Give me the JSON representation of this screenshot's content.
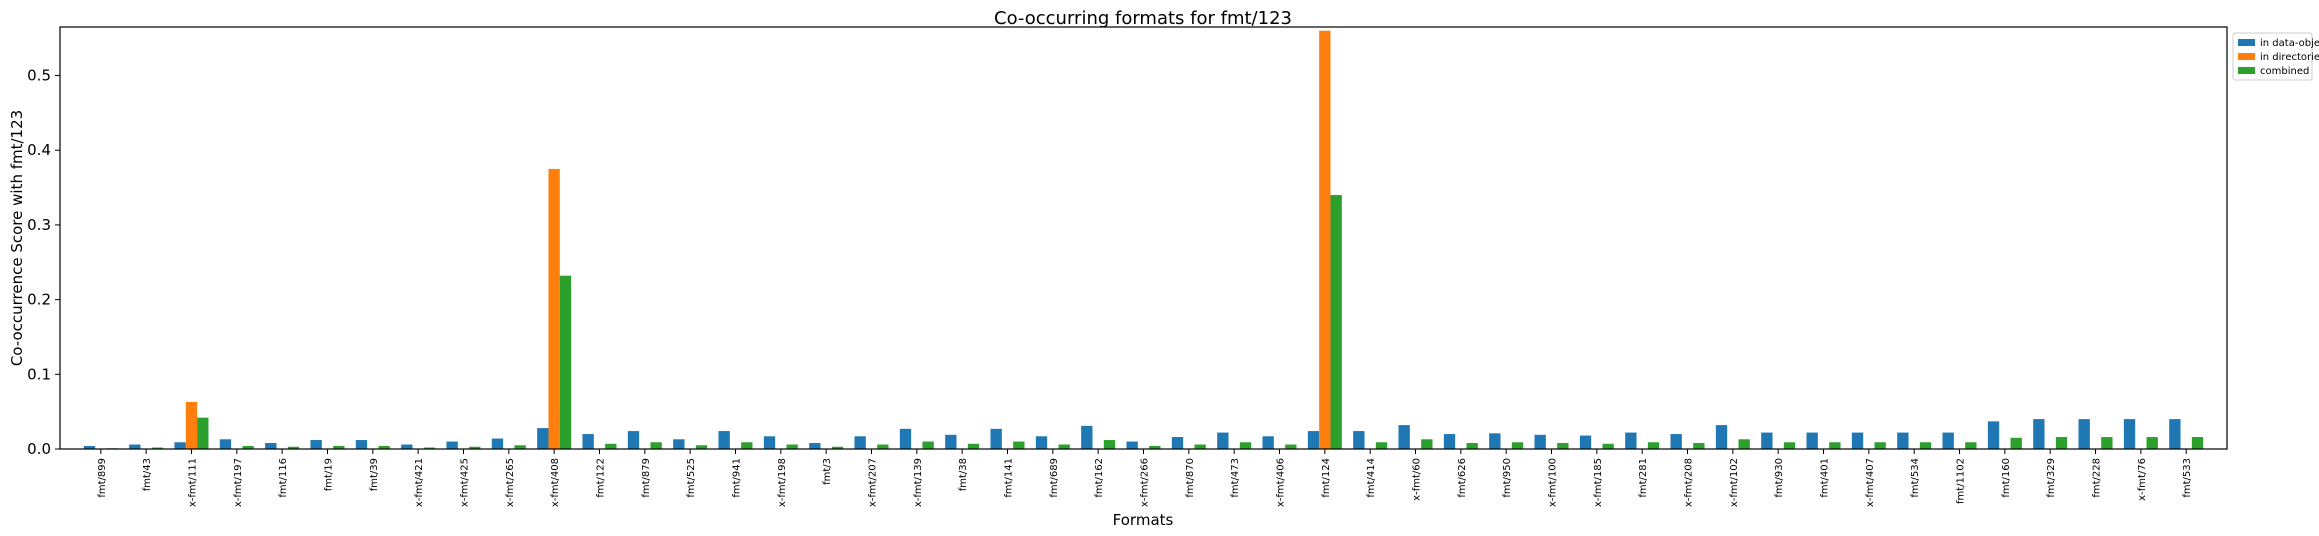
{
  "chart_data": {
    "type": "bar",
    "title": "Co-occurring formats for fmt/123",
    "xlabel": "Formats",
    "ylabel": "Co-occurrence Score with fmt/123",
    "ylim": [
      0,
      0.565
    ],
    "yticks": [
      0.0,
      0.1,
      0.2,
      0.3,
      0.4,
      0.5
    ],
    "ytick_labels": [
      "0.0",
      "0.1",
      "0.2",
      "0.3",
      "0.4",
      "0.5"
    ],
    "grid": false,
    "legend_position": "outside top-right",
    "categories": [
      "fmt/899",
      "fmt/43",
      "x-fmt/111",
      "x-fmt/197",
      "fmt/116",
      "fmt/19",
      "fmt/39",
      "x-fmt/421",
      "x-fmt/425",
      "x-fmt/265",
      "x-fmt/408",
      "fmt/122",
      "fmt/879",
      "fmt/525",
      "fmt/941",
      "x-fmt/198",
      "fmt/3",
      "x-fmt/207",
      "x-fmt/139",
      "fmt/38",
      "fmt/141",
      "fmt/689",
      "fmt/162",
      "x-fmt/266",
      "fmt/870",
      "fmt/473",
      "x-fmt/406",
      "fmt/124",
      "fmt/414",
      "x-fmt/60",
      "fmt/626",
      "fmt/950",
      "x-fmt/100",
      "x-fmt/185",
      "fmt/281",
      "x-fmt/208",
      "x-fmt/102",
      "fmt/930",
      "fmt/401",
      "x-fmt/407",
      "fmt/534",
      "fmt/1102",
      "fmt/160",
      "fmt/329",
      "fmt/228",
      "x-fmt/76",
      "fmt/533"
    ],
    "series": [
      {
        "name": "in data-objects",
        "color": "#1f77b4",
        "values": [
          0.004,
          0.006,
          0.009,
          0.013,
          0.008,
          0.012,
          0.012,
          0.006,
          0.01,
          0.014,
          0.028,
          0.02,
          0.024,
          0.013,
          0.024,
          0.017,
          0.008,
          0.017,
          0.027,
          0.019,
          0.027,
          0.017,
          0.031,
          0.01,
          0.016,
          0.022,
          0.017,
          0.024,
          0.024,
          0.032,
          0.02,
          0.021,
          0.019,
          0.018,
          0.022,
          0.02,
          0.032,
          0.022,
          0.022,
          0.022,
          0.022,
          0.022,
          0.037,
          0.04,
          0.04,
          0.04,
          0.04
        ]
      },
      {
        "name": "in directories",
        "color": "#ff7f0e",
        "values": [
          0,
          0,
          0.063,
          0,
          0,
          0,
          0,
          0,
          0,
          0,
          0.375,
          0,
          0,
          0,
          0,
          0,
          0,
          0,
          0,
          0,
          0,
          0,
          0,
          0,
          0,
          0,
          0,
          0.56,
          0,
          0,
          0,
          0,
          0,
          0,
          0,
          0,
          0,
          0,
          0,
          0,
          0,
          0,
          0,
          0,
          0,
          0,
          0
        ]
      },
      {
        "name": "combined",
        "color": "#2ca02c",
        "values": [
          0.001,
          0.002,
          0.042,
          0.004,
          0.003,
          0.004,
          0.004,
          0.002,
          0.003,
          0.005,
          0.232,
          0.007,
          0.009,
          0.005,
          0.009,
          0.006,
          0.003,
          0.006,
          0.01,
          0.007,
          0.01,
          0.006,
          0.012,
          0.004,
          0.006,
          0.009,
          0.006,
          0.34,
          0.009,
          0.013,
          0.008,
          0.009,
          0.008,
          0.007,
          0.009,
          0.008,
          0.013,
          0.009,
          0.009,
          0.009,
          0.009,
          0.009,
          0.015,
          0.016,
          0.016,
          0.016,
          0.016
        ]
      }
    ]
  }
}
